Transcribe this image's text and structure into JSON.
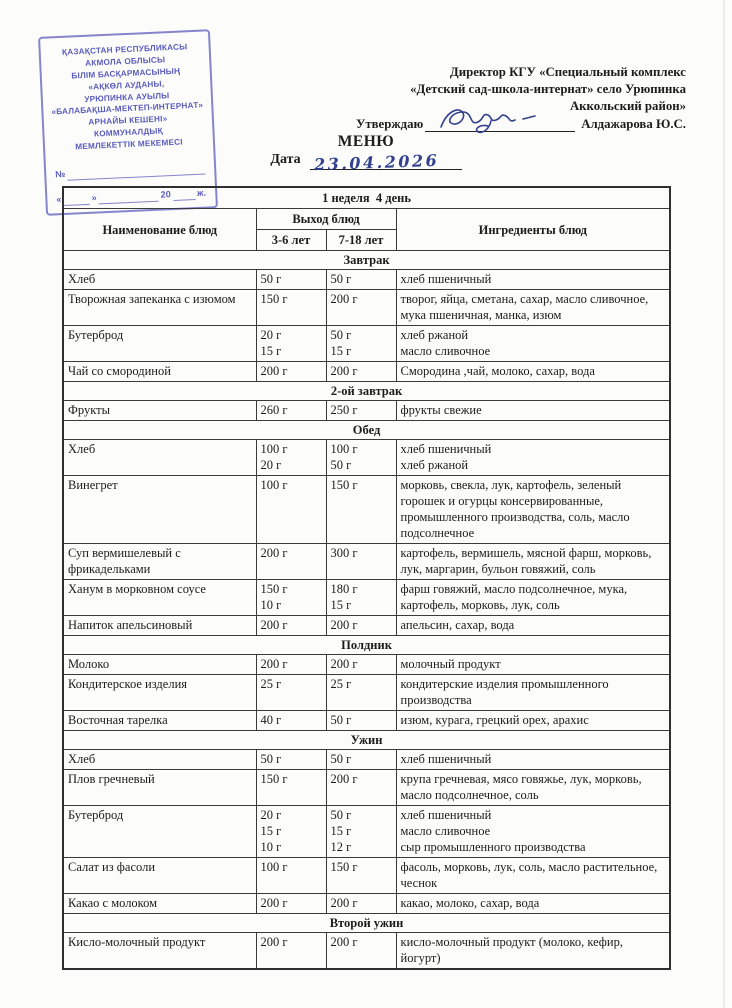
{
  "stamp": {
    "ink_color": "#5b5dbe",
    "lines": [
      "ҚАЗАҚСТАН РЕСПУБЛИКАСЫ",
      "АКМОЛА ОБЛЫСЫ",
      "БІЛІМ БАСҚАРМАСЫНЫҢ",
      "«АҚКӨЛ АУДАНЫ,",
      "УРЮПИНКА АУЫЛЫ",
      "«БАЛАБАҚША-МЕКТЕП-ИНТЕРНАТ»",
      "АРНАЙЫ КЕШЕНІ»",
      "КОММУНАЛДЫҚ",
      "МЕМЛЕКЕТТІК МЕКЕМЕСІ"
    ],
    "no_label": "№",
    "quote_open": "«",
    "quote_close": "»",
    "year_label": "20",
    "zh_label": "ж."
  },
  "approval": {
    "lines": [
      "Директор КГУ «Специальный комплекс",
      "«Детский сад-школа-интернат» село Урюпинка",
      "Аккольский район»"
    ],
    "approve_label": "Утверждаю",
    "approver": "Алдажарова Ю.С."
  },
  "title": "МЕНЮ",
  "date": {
    "label": "Дата",
    "value": "23.04.2026",
    "ink_color": "#32418f"
  },
  "table": {
    "week_day_header": "1 неделя  4 день",
    "col_name": "Наименование блюд",
    "col_output": "Выход блюд",
    "col_age1": "3-6 лет",
    "col_age2": "7-18 лет",
    "col_ingredients": "Ингредиенты блюд",
    "sections": [
      {
        "title": "Завтрак",
        "rows": [
          {
            "name": "Хлеб",
            "p36": [
              "50 г"
            ],
            "p718": [
              "50 г"
            ],
            "ingredients": [
              "хлеб пшеничный"
            ]
          },
          {
            "name": "Творожная запеканка с изюмом",
            "p36": [
              "150 г"
            ],
            "p718": [
              "200 г"
            ],
            "ingredients": [
              "творог, яйца, сметана, сахар, масло сливочное, мука пшеничная, манка, изюм"
            ]
          },
          {
            "name": "Бутерброд",
            "p36": [
              "20 г",
              "15 г"
            ],
            "p718": [
              "50 г",
              "15 г"
            ],
            "ingredients": [
              "хлеб ржаной",
              "масло сливочное"
            ]
          },
          {
            "name": "Чай  со смородиной",
            "p36": [
              "200 г"
            ],
            "p718": [
              "200 г"
            ],
            "ingredients": [
              "Смородина ,чай, молоко, сахар, вода"
            ]
          }
        ]
      },
      {
        "title": "2-ой завтрак",
        "rows": [
          {
            "name": "Фрукты",
            "p36": [
              "260 г"
            ],
            "p718": [
              "250 г"
            ],
            "ingredients": [
              "фрукты свежие"
            ]
          }
        ]
      },
      {
        "title": "Обед",
        "rows": [
          {
            "name": "Хлеб",
            "p36": [
              "100 г",
              "20 г"
            ],
            "p718": [
              "100 г",
              "50 г"
            ],
            "ingredients": [
              "хлеб пшеничный",
              "хлеб ржаной"
            ]
          },
          {
            "name": "Винегрет",
            "p36": [
              "100 г"
            ],
            "p718": [
              "150 г"
            ],
            "ingredients": [
              "морковь, свекла, лук, картофель, зеленый горошек и огурцы консервированные, промышленного производства, соль, масло подсолнечное"
            ]
          },
          {
            "name": "Суп вермишелевый с фрикадельками",
            "p36": [
              "200 г"
            ],
            "p718": [
              "300 г"
            ],
            "ingredients": [
              "картофель, вермишель, мясной фарш, морковь, лук, маргарин, бульон говяжий, соль"
            ]
          },
          {
            "name": "Ханум  в морковном соусе",
            "p36": [
              "150 г",
              "10 г"
            ],
            "p718": [
              "180 г",
              "15 г"
            ],
            "ingredients": [
              "фарш говяжий, масло подсолнечное, мука, картофель, морковь, лук, соль"
            ]
          },
          {
            "name": "Напиток апельсиновый",
            "p36": [
              "200 г"
            ],
            "p718": [
              "200 г"
            ],
            "ingredients": [
              "апельсин, сахар, вода"
            ]
          }
        ]
      },
      {
        "title": "Полдник",
        "rows": [
          {
            "name": "Молоко",
            "p36": [
              "200 г"
            ],
            "p718": [
              "200 г"
            ],
            "ingredients": [
              "молочный продукт"
            ]
          },
          {
            "name": "Кондитерское изделия",
            "p36": [
              "25 г"
            ],
            "p718": [
              "25 г"
            ],
            "ingredients": [
              "кондитерские изделия промышленного производства"
            ]
          },
          {
            "name": "Восточная тарелка",
            "p36": [
              "40 г"
            ],
            "p718": [
              "50 г"
            ],
            "ingredients": [
              "изюм, курага, грецкий орех, арахис"
            ]
          }
        ]
      },
      {
        "title": "Ужин",
        "rows": [
          {
            "name": "Хлеб",
            "p36": [
              "50 г"
            ],
            "p718": [
              "50 г"
            ],
            "ingredients": [
              "хлеб пшеничный"
            ]
          },
          {
            "name": "Плов гречневый",
            "p36": [
              "150 г"
            ],
            "p718": [
              "200 г"
            ],
            "ingredients": [
              "крупа гречневая, мясо говяжье, лук, морковь, масло подсолнечное, соль"
            ]
          },
          {
            "name": "Бутерброд",
            "p36": [
              "20 г",
              "15 г",
              "10 г"
            ],
            "p718": [
              "50 г",
              "15 г",
              "12 г"
            ],
            "ingredients": [
              "хлеб пшеничный",
              "масло сливочное",
              "сыр промышленного производства"
            ]
          },
          {
            "name": "Салат из фасоли",
            "p36": [
              "100 г"
            ],
            "p718": [
              "150 г"
            ],
            "ingredients": [
              "фасоль, морковь, лук, соль, масло растительное, чеснок"
            ]
          },
          {
            "name": "Какао с молоком",
            "p36": [
              "200 г"
            ],
            "p718": [
              "200 г"
            ],
            "ingredients": [
              "какао, молоко, сахар, вода"
            ]
          }
        ]
      },
      {
        "title": "Второй ужин",
        "rows": [
          {
            "name": "Кисло-молочный продукт",
            "p36": [
              "200 г"
            ],
            "p718": [
              "200 г"
            ],
            "ingredients": [
              "кисло-молочный продукт (молоко, кефир, йогурт)"
            ]
          }
        ]
      }
    ]
  }
}
